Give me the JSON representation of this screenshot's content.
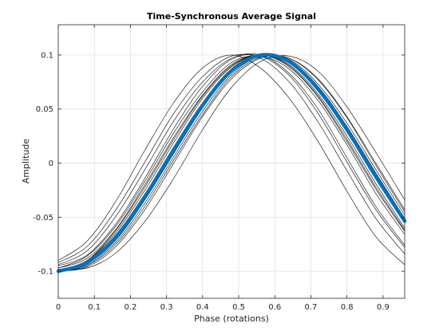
{
  "chart_data": {
    "type": "line",
    "title": "Time-Synchronous Average Signal",
    "xlabel": "Phase (rotations)",
    "ylabel": "Amplitude",
    "xlim": [
      0,
      0.96
    ],
    "ylim": [
      -0.125,
      0.128
    ],
    "grid": true,
    "xticks": [
      {
        "v": 0,
        "label": "0"
      },
      {
        "v": 0.1,
        "label": "0.1"
      },
      {
        "v": 0.2,
        "label": "0.2"
      },
      {
        "v": 0.3,
        "label": "0.3"
      },
      {
        "v": 0.4,
        "label": "0.4"
      },
      {
        "v": 0.5,
        "label": "0.5"
      },
      {
        "v": 0.6,
        "label": "0.6"
      },
      {
        "v": 0.7,
        "label": "0.7"
      },
      {
        "v": 0.8,
        "label": "0.8"
      },
      {
        "v": 0.9,
        "label": "0.9"
      }
    ],
    "yticks": [
      {
        "v": -0.1,
        "label": "-0.1"
      },
      {
        "v": -0.05,
        "label": "-0.05"
      },
      {
        "v": 0,
        "label": "0"
      },
      {
        "v": 0.05,
        "label": "0.05"
      },
      {
        "v": 0.1,
        "label": "0.1"
      }
    ],
    "series": [
      {
        "role": "average",
        "color": "#0072BD",
        "x": [
          0,
          0.08,
          0.16,
          0.24,
          0.32,
          0.4,
          0.48,
          0.56,
          0.64,
          0.72,
          0.8,
          0.88,
          0.96
        ],
        "y": [
          -0.1,
          -0.0917,
          -0.068,
          -0.0309,
          0.0125,
          0.0536,
          0.0855,
          0.0998,
          0.0939,
          0.0685,
          0.0309,
          -0.0125,
          -0.0536
        ]
      },
      {
        "role": "overlay",
        "color": "#000000",
        "x": [
          0,
          0.08,
          0.16,
          0.24,
          0.32,
          0.4,
          0.48,
          0.56,
          0.64,
          0.72,
          0.8,
          0.88,
          0.96
        ],
        "y": [
          -0.097,
          -0.086,
          -0.058,
          -0.017,
          0.028,
          0.066,
          0.093,
          0.099,
          0.087,
          0.058,
          0.017,
          -0.028,
          -0.066
        ]
      },
      {
        "role": "overlay",
        "color": "#000000",
        "x": [
          0,
          0.08,
          0.16,
          0.24,
          0.32,
          0.4,
          0.48,
          0.56,
          0.64,
          0.72,
          0.8,
          0.88,
          0.96
        ],
        "y": [
          -0.1,
          -0.095,
          -0.075,
          -0.04,
          0.003,
          0.045,
          0.08,
          0.098,
          0.097,
          0.077,
          0.042,
          -0.002,
          -0.045
        ]
      },
      {
        "role": "overlay",
        "color": "#000000",
        "x": [
          0,
          0.08,
          0.16,
          0.24,
          0.32,
          0.4,
          0.48,
          0.56,
          0.64,
          0.72,
          0.8,
          0.88,
          0.96
        ],
        "y": [
          -0.094,
          -0.081,
          -0.049,
          -0.006,
          0.039,
          0.075,
          0.097,
          0.1,
          0.083,
          0.05,
          0.005,
          -0.04,
          -0.076
        ]
      },
      {
        "role": "overlay",
        "color": "#000000",
        "x": [
          0,
          0.08,
          0.16,
          0.24,
          0.32,
          0.4,
          0.48,
          0.56,
          0.64,
          0.72,
          0.8,
          0.88,
          0.96
        ],
        "y": [
          -0.1,
          -0.093,
          -0.071,
          -0.034,
          0.009,
          0.051,
          0.084,
          0.1,
          0.095,
          0.071,
          0.034,
          -0.009,
          -0.051
        ]
      },
      {
        "role": "overlay",
        "color": "#000000",
        "x": [
          0,
          0.08,
          0.16,
          0.24,
          0.32,
          0.4,
          0.48,
          0.56,
          0.64,
          0.72,
          0.8,
          0.88,
          0.96
        ],
        "y": [
          -0.099,
          -0.09,
          -0.064,
          -0.025,
          0.019,
          0.06,
          0.089,
          0.1,
          0.091,
          0.064,
          0.025,
          -0.019,
          -0.06
        ]
      },
      {
        "role": "overlay",
        "color": "#000000",
        "x": [
          0,
          0.08,
          0.16,
          0.24,
          0.32,
          0.4,
          0.48,
          0.56,
          0.64,
          0.72,
          0.8,
          0.88,
          0.96
        ],
        "y": [
          -0.092,
          -0.077,
          -0.043,
          0.001,
          0.046,
          0.08,
          0.099,
          0.097,
          0.075,
          0.038,
          -0.007,
          -0.051,
          -0.084
        ]
      },
      {
        "role": "overlay",
        "color": "#000000",
        "x": [
          0,
          0.08,
          0.16,
          0.24,
          0.32,
          0.4,
          0.48,
          0.56,
          0.64,
          0.72,
          0.8,
          0.88,
          0.96
        ],
        "y": [
          -0.098,
          -0.097,
          -0.083,
          -0.054,
          -0.014,
          0.031,
          0.07,
          0.094,
          0.099,
          0.085,
          0.052,
          0.01,
          -0.034
        ]
      },
      {
        "role": "overlay",
        "color": "#000000",
        "x": [
          0,
          0.08,
          0.16,
          0.24,
          0.32,
          0.4,
          0.48,
          0.56,
          0.64,
          0.72,
          0.8,
          0.88,
          0.96
        ],
        "y": [
          -0.095,
          -0.085,
          -0.056,
          -0.014,
          0.032,
          0.071,
          0.096,
          0.099,
          0.081,
          0.046,
          0.001,
          -0.043,
          -0.078
        ]
      },
      {
        "role": "overlay",
        "color": "#000000",
        "x": [
          0,
          0.08,
          0.16,
          0.24,
          0.32,
          0.4,
          0.48,
          0.56,
          0.64,
          0.72,
          0.8,
          0.88,
          0.96
        ],
        "y": [
          -0.1,
          -0.094,
          -0.073,
          -0.037,
          0.006,
          0.048,
          0.082,
          0.099,
          0.096,
          0.073,
          0.037,
          -0.006,
          -0.048
        ]
      },
      {
        "role": "overlay",
        "color": "#000000",
        "x": [
          0,
          0.08,
          0.16,
          0.24,
          0.32,
          0.4,
          0.48,
          0.56,
          0.64,
          0.72,
          0.8,
          0.88,
          0.96
        ],
        "y": [
          -0.09,
          -0.072,
          -0.035,
          0.012,
          0.056,
          0.088,
          0.1,
          0.088,
          0.06,
          0.02,
          -0.026,
          -0.068,
          -0.094
        ]
      },
      {
        "role": "overlay",
        "color": "#000000",
        "x": [
          0,
          0.08,
          0.16,
          0.24,
          0.32,
          0.4,
          0.48,
          0.56,
          0.64,
          0.72,
          0.8,
          0.88,
          0.96
        ],
        "y": [
          -0.099,
          -0.09,
          -0.062,
          -0.022,
          0.022,
          0.062,
          0.09,
          0.1,
          0.09,
          0.062,
          0.022,
          -0.022,
          -0.062
        ]
      },
      {
        "role": "overlay",
        "color": "#000000",
        "x": [
          0,
          0.08,
          0.16,
          0.24,
          0.32,
          0.4,
          0.48,
          0.56,
          0.64,
          0.72,
          0.8,
          0.88,
          0.96
        ],
        "y": [
          -0.1,
          -0.092,
          -0.069,
          -0.031,
          0.012,
          0.054,
          0.086,
          0.1,
          0.094,
          0.069,
          0.031,
          -0.012,
          -0.054
        ]
      },
      {
        "role": "overlay",
        "color": "#000000",
        "x": [
          0,
          0.08,
          0.16,
          0.24,
          0.32,
          0.4,
          0.48,
          0.56,
          0.64,
          0.72,
          0.8,
          0.88,
          0.96
        ],
        "y": [
          -0.097,
          -0.088,
          -0.061,
          -0.02,
          0.024,
          0.063,
          0.091,
          0.1,
          0.089,
          0.061,
          0.02,
          -0.024,
          -0.063
        ]
      },
      {
        "role": "overlay",
        "color": "#000000",
        "x": [
          0,
          0.08,
          0.16,
          0.24,
          0.32,
          0.4,
          0.48,
          0.56,
          0.64,
          0.72,
          0.8,
          0.88,
          0.96
        ],
        "y": [
          -0.1,
          -0.096,
          -0.077,
          -0.043,
          0,
          0.043,
          0.078,
          0.097,
          0.097,
          0.078,
          0.043,
          0,
          -0.043
        ]
      }
    ]
  }
}
